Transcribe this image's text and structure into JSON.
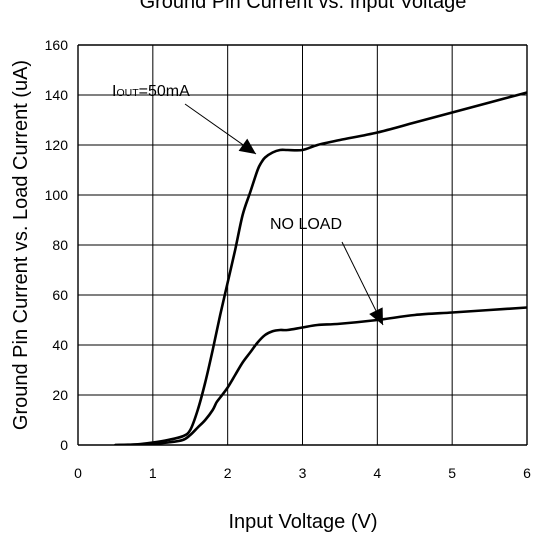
{
  "chart_data": {
    "type": "line",
    "title": "Ground Pin Current vs. Input Voltage",
    "xlabel": "Input Voltage (V)",
    "ylabel": "Ground Pin Current vs. Load Current (uA)",
    "xlim": [
      0,
      6
    ],
    "ylim": [
      0,
      160
    ],
    "x_ticks": [
      "0",
      "1",
      "2",
      "3",
      "4",
      "5",
      "6"
    ],
    "y_ticks": [
      "0",
      "20",
      "40",
      "60",
      "80",
      "100",
      "120",
      "140",
      "160"
    ],
    "grid": true,
    "series": [
      {
        "name": "IOUT=50mA",
        "x": [
          0.5,
          0.8,
          1.0,
          1.2,
          1.4,
          1.5,
          1.6,
          1.7,
          1.8,
          1.9,
          2.0,
          2.1,
          2.2,
          2.3,
          2.4,
          2.45,
          2.5,
          2.6,
          2.7,
          2.8,
          3.0,
          3.2,
          3.5,
          4.0,
          4.5,
          5.0,
          5.5,
          6.0
        ],
        "y": [
          0,
          0.3,
          1,
          2,
          3.5,
          6,
          14,
          25,
          38,
          52,
          65,
          78,
          92,
          101,
          110,
          113,
          115,
          117,
          118,
          118,
          118,
          120,
          122,
          125,
          129,
          133,
          137,
          141
        ]
      },
      {
        "name": "NO LOAD",
        "x": [
          0.5,
          0.8,
          1.0,
          1.2,
          1.4,
          1.5,
          1.6,
          1.7,
          1.8,
          1.85,
          1.9,
          2.0,
          2.1,
          2.2,
          2.3,
          2.4,
          2.5,
          2.6,
          2.7,
          2.8,
          3.0,
          3.2,
          3.5,
          4.0,
          4.5,
          5.0,
          5.5,
          6.0
        ],
        "y": [
          0,
          0.2,
          0.5,
          1,
          2,
          4,
          7,
          10,
          14,
          17,
          19,
          23,
          28,
          33,
          37,
          41,
          44,
          45.5,
          46,
          46,
          47,
          48,
          48.5,
          50,
          52,
          53,
          54,
          55
        ]
      }
    ],
    "annotations": [
      {
        "label_main": "I",
        "label_sub": "OUT",
        "label_rest": "=50mA"
      },
      {
        "label": "NO LOAD"
      }
    ]
  }
}
